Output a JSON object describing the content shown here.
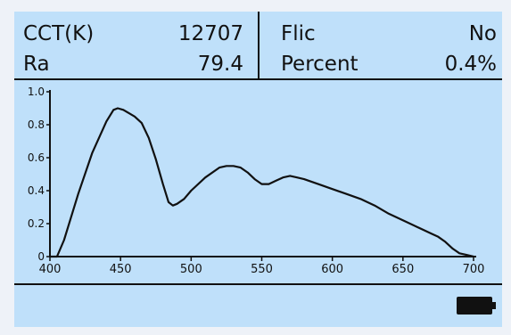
{
  "readings": {
    "cct_label": "CCT(K)",
    "cct_value": "12707",
    "ra_label": "Ra",
    "ra_value": "79.4",
    "flicker_label": "Flic",
    "flicker_value": "No",
    "percent_label": "Percent",
    "percent_value": "0.4%"
  },
  "chart_data": {
    "type": "line",
    "title": "",
    "xlabel": "",
    "ylabel": "",
    "xlim": [
      400,
      700
    ],
    "ylim": [
      0,
      1.0
    ],
    "x_ticks": [
      400,
      450,
      500,
      550,
      600,
      650,
      700
    ],
    "y_ticks": [
      0,
      0.2,
      0.4,
      0.6,
      0.8,
      1.0
    ],
    "x_tick_labels": [
      "400",
      "450",
      "500",
      "550",
      "600",
      "650",
      "700"
    ],
    "y_tick_labels": [
      "0",
      "0.2",
      "0.4",
      "0.6",
      "0.8",
      "1.0"
    ],
    "grid": false,
    "series": [
      {
        "x": [
          395,
          405,
          410,
          420,
          430,
          440,
          445,
          448,
          452,
          456,
          460,
          465,
          470,
          475,
          480,
          484,
          487,
          490,
          495,
          500,
          510,
          520,
          525,
          530,
          535,
          540,
          545,
          550,
          555,
          560,
          565,
          570,
          575,
          580,
          590,
          600,
          610,
          620,
          630,
          640,
          650,
          660,
          670,
          675,
          680,
          685,
          690,
          695,
          700
        ],
        "y": [
          0,
          0,
          0.1,
          0.38,
          0.63,
          0.82,
          0.89,
          0.9,
          0.89,
          0.87,
          0.85,
          0.81,
          0.72,
          0.59,
          0.44,
          0.33,
          0.31,
          0.32,
          0.35,
          0.4,
          0.48,
          0.54,
          0.55,
          0.55,
          0.54,
          0.51,
          0.47,
          0.44,
          0.44,
          0.46,
          0.48,
          0.49,
          0.48,
          0.47,
          0.44,
          0.41,
          0.38,
          0.35,
          0.31,
          0.26,
          0.22,
          0.18,
          0.14,
          0.12,
          0.09,
          0.05,
          0.02,
          0.01,
          0
        ]
      }
    ]
  },
  "colors": {
    "screen_bg": "#bfe0fa",
    "ink": "#111111"
  }
}
